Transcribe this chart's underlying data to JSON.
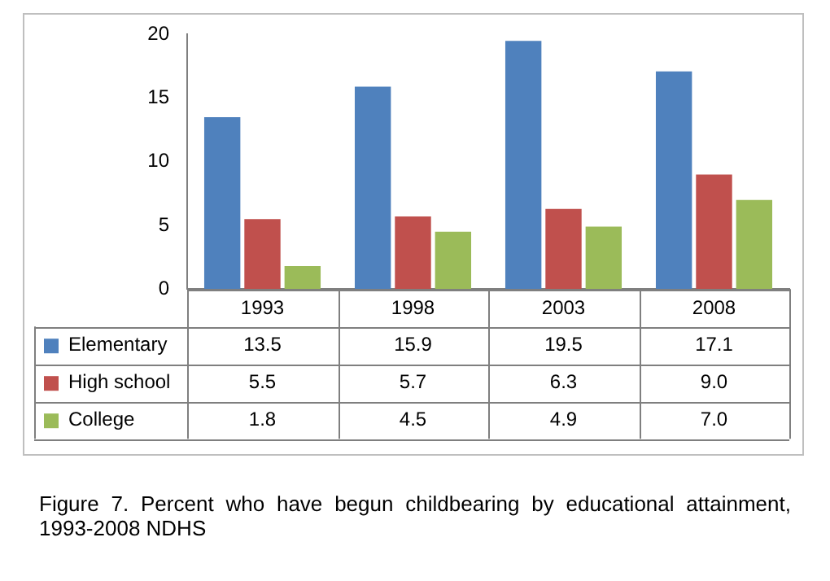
{
  "chart_data": {
    "type": "bar",
    "categories": [
      "1993",
      "1998",
      "2003",
      "2008"
    ],
    "series": [
      {
        "name": "Elementary",
        "color": "#4f81bd",
        "values": [
          13.5,
          15.9,
          19.5,
          17.1
        ],
        "value_labels": [
          "13.5",
          "15.9",
          "19.5",
          "17.1"
        ]
      },
      {
        "name": "High school",
        "color": "#c0504d",
        "values": [
          5.5,
          5.7,
          6.3,
          9.0
        ],
        "value_labels": [
          "5.5",
          "5.7",
          "6.3",
          "9.0"
        ]
      },
      {
        "name": "College",
        "color": "#9bbb59",
        "values": [
          1.8,
          4.5,
          4.9,
          7.0
        ],
        "value_labels": [
          "1.8",
          "4.5",
          "4.9",
          "7.0"
        ]
      }
    ],
    "ylim": [
      0,
      20
    ],
    "yticks": [
      0,
      5,
      10,
      15,
      20
    ],
    "grid": false,
    "legend": "bottom left",
    "annotations": [
      "Figure 7. Percent who have begun childbearing by educational attainment, 1993-2008 NDHS"
    ]
  }
}
